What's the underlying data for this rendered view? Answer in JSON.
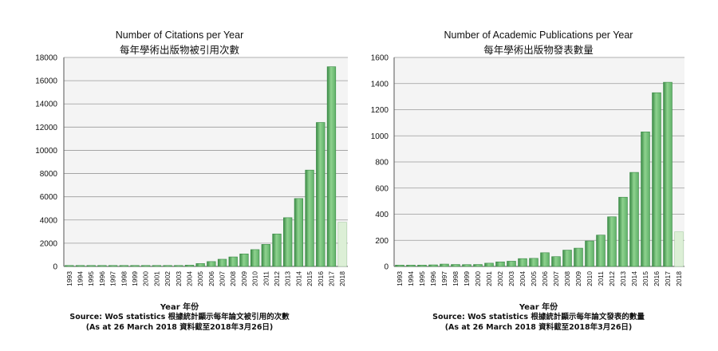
{
  "colors": {
    "bar": "#5fb168",
    "bar_dark": "#3a8a45",
    "bar_light": "#8fd28f",
    "bar_partial": "#dcefd6",
    "bar_partial_edge": "#a9cfa4",
    "plot_bg": "#f4f4f4",
    "grid": "#9a9a9a",
    "axis": "#555555"
  },
  "chart_data": [
    {
      "type": "bar",
      "title": "Number of Citations per Year",
      "subtitle": "每年學術出版物被引用次數",
      "xlabel": "Year 年份",
      "source": "Source:  WoS statistics 根據統計顯示每年論文被引用的次數",
      "note": "(As at 26 March 2018 資料截至2018年3月26日)",
      "ylim": [
        0,
        18000
      ],
      "yticks": [
        0,
        2000,
        4000,
        6000,
        8000,
        10000,
        12000,
        14000,
        16000,
        18000
      ],
      "grid": true,
      "categories": [
        "1993",
        "1994",
        "1995",
        "1996",
        "1997",
        "1998",
        "1999",
        "2000",
        "2001",
        "2002",
        "2003",
        "2004",
        "2005",
        "2006",
        "2007",
        "2008",
        "2009",
        "2010",
        "2011",
        "2012",
        "2013",
        "2014",
        "2015",
        "2016",
        "2017",
        "2018"
      ],
      "values": [
        5,
        8,
        10,
        14,
        20,
        25,
        30,
        38,
        48,
        60,
        80,
        110,
        250,
        420,
        620,
        820,
        1080,
        1450,
        1900,
        2800,
        4200,
        5850,
        8300,
        12400,
        17200,
        3800
      ],
      "partial_year": "2018"
    },
    {
      "type": "bar",
      "title": "Number of Academic Publications per Year",
      "subtitle": "每年學術出版物發表數量",
      "xlabel": "Year 年份",
      "source": "Source:  WoS statistics 根據統計顯示每年論文發表的數量",
      "note": "(As at 26 March 2018 資料截至2018年3月26日)",
      "ylim": [
        0,
        1600
      ],
      "yticks": [
        0,
        200,
        400,
        600,
        800,
        1000,
        1200,
        1400,
        1600
      ],
      "grid": true,
      "categories": [
        "1993",
        "1994",
        "1995",
        "1996",
        "1997",
        "1998",
        "1999",
        "2000",
        "2001",
        "2002",
        "2003",
        "2004",
        "2005",
        "2006",
        "2007",
        "2008",
        "2009",
        "2010",
        "2011",
        "2012",
        "2013",
        "2014",
        "2015",
        "2016",
        "2017",
        "2018"
      ],
      "values": [
        10,
        10,
        10,
        12,
        18,
        15,
        14,
        15,
        25,
        35,
        40,
        60,
        62,
        105,
        75,
        125,
        140,
        195,
        240,
        380,
        530,
        720,
        1030,
        1330,
        1410,
        265
      ],
      "partial_year": "2018"
    }
  ]
}
